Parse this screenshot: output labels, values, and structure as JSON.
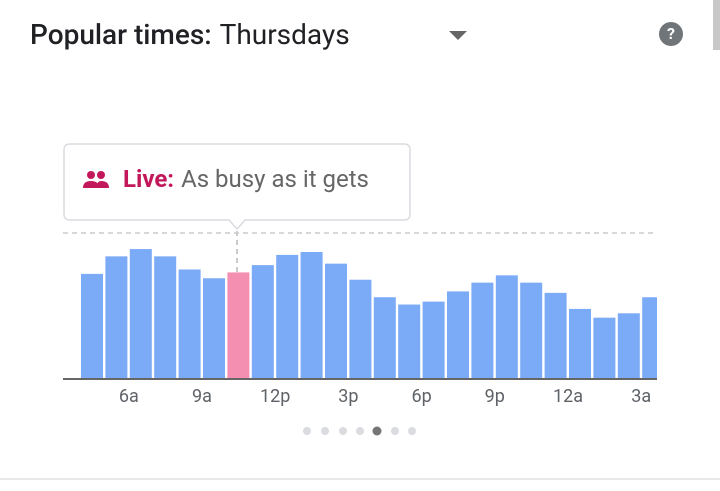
{
  "header": {
    "title": "Popular times:",
    "day": "Thursdays"
  },
  "tooltip": {
    "label": "Live:",
    "text": "As busy as it gets"
  },
  "chart_data": {
    "type": "bar",
    "categories": [
      null,
      null,
      "6a",
      null,
      null,
      "9a",
      null,
      null,
      "12p",
      null,
      null,
      "3p",
      null,
      null,
      "6p",
      null,
      null,
      "9p",
      null,
      null,
      "12a",
      null,
      null,
      "3a"
    ],
    "values": [
      72,
      84,
      89,
      84,
      75,
      69,
      73,
      78,
      85,
      87,
      79,
      68,
      56,
      51,
      53,
      60,
      66,
      71,
      66,
      59,
      48,
      42,
      45,
      56
    ],
    "colors": [
      "#7baaf7",
      "#7baaf7",
      "#7baaf7",
      "#7baaf7",
      "#7baaf7",
      "#7baaf7",
      "#f48fb1",
      "#7baaf7",
      "#7baaf7",
      "#7baaf7",
      "#7baaf7",
      "#7baaf7",
      "#7baaf7",
      "#7baaf7",
      "#7baaf7",
      "#7baaf7",
      "#7baaf7",
      "#7baaf7",
      "#7baaf7",
      "#7baaf7",
      "#7baaf7",
      "#7baaf7",
      "#7baaf7",
      "#7baaf7"
    ],
    "ylim": [
      0,
      100
    ]
  }
}
